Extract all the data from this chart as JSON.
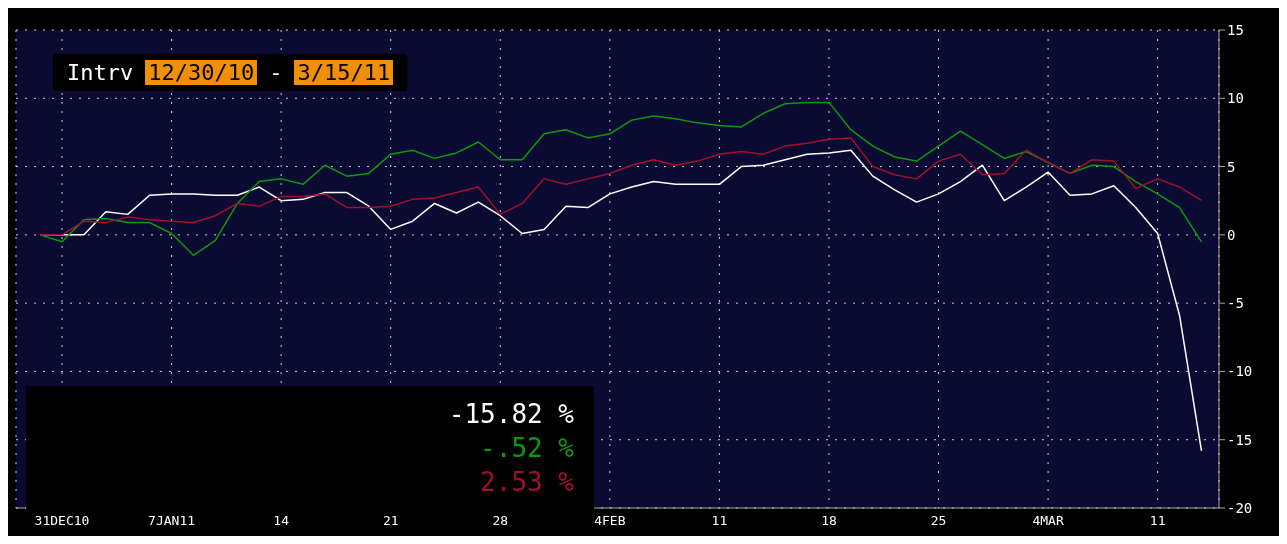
{
  "chart_data": {
    "type": "line",
    "title": "Intrv",
    "categories": [
      null,
      "31DEC10",
      null,
      null,
      null,
      null,
      "7JAN11",
      null,
      null,
      null,
      null,
      "14",
      null,
      null,
      null,
      null,
      "21",
      null,
      null,
      null,
      null,
      "28",
      null,
      null,
      null,
      null,
      "4FEB",
      null,
      null,
      null,
      null,
      "11",
      null,
      null,
      null,
      null,
      "18",
      null,
      null,
      null,
      null,
      "25",
      null,
      null,
      null,
      null,
      "4MAR",
      null,
      null,
      null,
      null,
      "11",
      null,
      null
    ],
    "series": [
      {
        "color": "#ffffff",
        "values": [
          0,
          0,
          0,
          1.7,
          1.5,
          2.9,
          3.0,
          3.0,
          2.9,
          2.9,
          3.5,
          2.5,
          2.6,
          3.1,
          3.1,
          2.1,
          0.4,
          1.0,
          2.3,
          1.6,
          2.4,
          1.4,
          0.1,
          0.4,
          2.1,
          2.0,
          3.0,
          3.5,
          3.9,
          3.7,
          3.7,
          3.7,
          5.0,
          5.1,
          5.5,
          5.9,
          6.0,
          6.2,
          4.3,
          3.3,
          2.4,
          3.0,
          3.9,
          5.1,
          2.5,
          3.5,
          4.6,
          2.9,
          3.0,
          3.6,
          2.0,
          0.1,
          -5.9,
          -15.82
        ]
      },
      {
        "color": "#0a9a0a",
        "values": [
          0,
          -0.5,
          1.1,
          1.2,
          0.9,
          0.9,
          0.1,
          -1.5,
          -0.4,
          2.3,
          3.9,
          4.1,
          3.7,
          5.1,
          4.3,
          4.5,
          5.9,
          6.2,
          5.6,
          6.0,
          6.8,
          5.5,
          5.5,
          7.4,
          7.7,
          7.1,
          7.4,
          8.4,
          8.7,
          8.5,
          8.2,
          8.0,
          7.9,
          8.9,
          9.6,
          9.7,
          9.7,
          7.7,
          6.5,
          5.7,
          5.4,
          6.5,
          7.6,
          6.6,
          5.6,
          6.1,
          5.3,
          4.5,
          5.1,
          5.0,
          3.9,
          3.0,
          2.0,
          -0.52
        ]
      },
      {
        "color": "#a0102a",
        "values": [
          0,
          0,
          1.0,
          0.9,
          1.3,
          1.1,
          1.0,
          0.9,
          1.4,
          2.3,
          2.1,
          2.8,
          2.8,
          3.0,
          2.0,
          2.0,
          2.1,
          2.6,
          2.7,
          3.1,
          3.5,
          1.5,
          2.3,
          4.1,
          3.7,
          4.1,
          4.5,
          5.1,
          5.5,
          5.1,
          5.4,
          5.9,
          6.1,
          5.9,
          6.5,
          6.7,
          7.0,
          7.1,
          5.0,
          4.4,
          4.1,
          5.4,
          5.9,
          4.4,
          4.5,
          6.2,
          5.3,
          4.5,
          5.5,
          5.4,
          3.4,
          4.1,
          3.5,
          2.53
        ]
      }
    ],
    "ylim": [
      -20,
      15
    ],
    "yticks": [
      -20,
      -15,
      -10,
      -5,
      0,
      5,
      10,
      15
    ],
    "grid": true,
    "annotations": [
      "12/30/10",
      "-",
      "3/15/11",
      "-15.82 %",
      "-.52 %",
      "2.53 %"
    ]
  }
}
